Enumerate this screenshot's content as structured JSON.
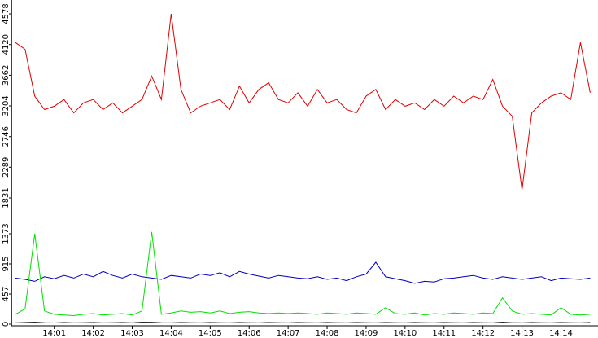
{
  "chart_data": [
    {
      "type": "line",
      "x": [
        0,
        0.25,
        0.5,
        0.75,
        1,
        1.25,
        1.5,
        1.75,
        2,
        2.25,
        2.5,
        2.75,
        3,
        3.25,
        3.5,
        3.75,
        4,
        4.25,
        4.5,
        4.75,
        5,
        5.25,
        5.5,
        5.75,
        6,
        6.25,
        6.5,
        6.75,
        7,
        7.25,
        7.5,
        7.75,
        8,
        8.25,
        8.5,
        8.75,
        9,
        9.25,
        9.5,
        9.75,
        10,
        10.25,
        10.5,
        10.75,
        11,
        11.25,
        11.5,
        11.75,
        12,
        12.25,
        12.5,
        12.75,
        13,
        13.25,
        13.5,
        13.75,
        14,
        14.25,
        14.5,
        14.75
      ],
      "xlim": [
        -0.1,
        14.95
      ],
      "ylim": [
        1600,
        4785
      ],
      "yticks": [
        1831,
        2289,
        2746,
        3204,
        3662,
        4120,
        4578
      ],
      "series": [
        {
          "color": "#e00000",
          "values": [
            4150,
            4050,
            3350,
            3150,
            3200,
            3300,
            3100,
            3250,
            3300,
            3150,
            3250,
            3100,
            3200,
            3300,
            3650,
            3300,
            4578,
            3450,
            3100,
            3200,
            3250,
            3300,
            3150,
            3500,
            3250,
            3450,
            3550,
            3300,
            3250,
            3400,
            3200,
            3450,
            3250,
            3300,
            3150,
            3100,
            3350,
            3450,
            3150,
            3300,
            3200,
            3250,
            3150,
            3300,
            3200,
            3350,
            3250,
            3350,
            3300,
            3600,
            3200,
            3050,
            1950,
            3100,
            3250,
            3350,
            3400,
            3300,
            4150,
            3400
          ]
        }
      ]
    },
    {
      "type": "line",
      "x": [
        0,
        0.25,
        0.5,
        0.75,
        1,
        1.25,
        1.5,
        1.75,
        2,
        2.25,
        2.5,
        2.75,
        3,
        3.25,
        3.5,
        3.75,
        4,
        4.25,
        4.5,
        4.75,
        5,
        5.25,
        5.5,
        5.75,
        6,
        6.25,
        6.5,
        6.75,
        7,
        7.25,
        7.5,
        7.75,
        8,
        8.25,
        8.5,
        8.75,
        9,
        9.25,
        9.5,
        9.75,
        10,
        10.25,
        10.5,
        10.75,
        11,
        11.25,
        11.5,
        11.75,
        12,
        12.25,
        12.5,
        12.75,
        13,
        13.25,
        13.5,
        13.75,
        14,
        14.25,
        14.5,
        14.75
      ],
      "xlim": [
        -0.1,
        14.95
      ],
      "xticks": [
        {
          "value": 1,
          "label": "14:01"
        },
        {
          "value": 2,
          "label": "14:02"
        },
        {
          "value": 3,
          "label": "14:03"
        },
        {
          "value": 4,
          "label": "14:04"
        },
        {
          "value": 5,
          "label": "14:05"
        },
        {
          "value": 6,
          "label": "14:06"
        },
        {
          "value": 7,
          "label": "14:07"
        },
        {
          "value": 8,
          "label": "14:08"
        },
        {
          "value": 9,
          "label": "14:09"
        },
        {
          "value": 10,
          "label": "14:10"
        },
        {
          "value": 11,
          "label": "14:11"
        },
        {
          "value": 12,
          "label": "14:12"
        },
        {
          "value": 13,
          "label": "14:13"
        },
        {
          "value": 14,
          "label": "14:14"
        }
      ],
      "ylim": [
        -25,
        1645
      ],
      "yticks": [
        0,
        457,
        915,
        1373
      ],
      "series": [
        {
          "color": "#0000c0",
          "values": [
            700,
            680,
            650,
            720,
            690,
            740,
            700,
            760,
            720,
            800,
            740,
            700,
            760,
            720,
            700,
            680,
            740,
            720,
            700,
            760,
            740,
            780,
            720,
            800,
            760,
            730,
            700,
            740,
            720,
            700,
            690,
            720,
            680,
            700,
            660,
            720,
            760,
            940,
            720,
            690,
            660,
            620,
            650,
            640,
            690,
            700,
            720,
            740,
            700,
            680,
            720,
            700,
            680,
            700,
            720,
            660,
            700,
            690,
            680,
            700
          ]
        },
        {
          "color": "#00e000",
          "values": [
            150,
            230,
            1373,
            200,
            150,
            140,
            130,
            150,
            160,
            140,
            150,
            160,
            140,
            200,
            1400,
            150,
            170,
            200,
            180,
            190,
            170,
            200,
            160,
            180,
            190,
            170,
            160,
            170,
            160,
            170,
            160,
            150,
            170,
            160,
            150,
            170,
            160,
            150,
            250,
            160,
            150,
            170,
            140,
            160,
            150,
            170,
            160,
            150,
            170,
            160,
            400,
            200,
            150,
            160,
            150,
            140,
            250,
            150,
            140,
            150
          ]
        },
        {
          "color": "#000000",
          "values": [
            20,
            25,
            30,
            22,
            18,
            25,
            20,
            22,
            24,
            20,
            22,
            25,
            20,
            30,
            28,
            22,
            20,
            25,
            22,
            20,
            24,
            22,
            20,
            25,
            22,
            20,
            24,
            22,
            20,
            25,
            22,
            20,
            24,
            22,
            20,
            25,
            22,
            20,
            24,
            22,
            20,
            25,
            22,
            20,
            24,
            22,
            20,
            25,
            22,
            20,
            30,
            22,
            20,
            25,
            22,
            20,
            24,
            22,
            20,
            25
          ]
        }
      ]
    }
  ]
}
